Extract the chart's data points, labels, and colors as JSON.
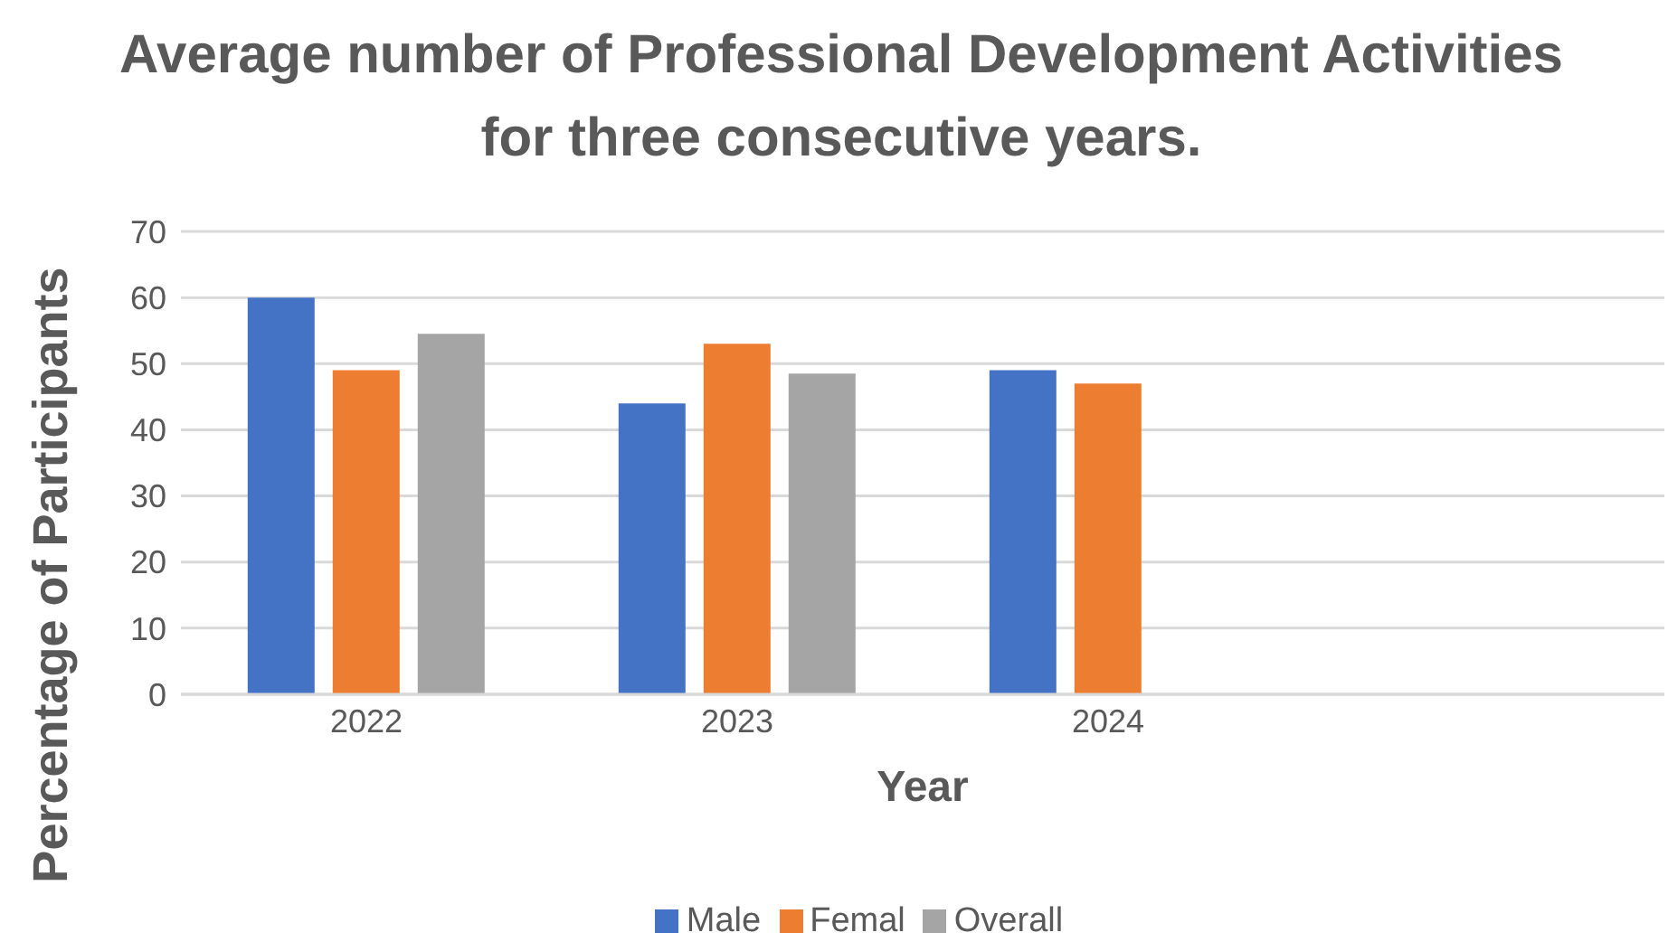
{
  "chart_data": {
    "type": "bar",
    "title": "Average number of Professional Development Activities for three consecutive years.",
    "xlabel": "Year",
    "ylabel": "Percentage of Participants",
    "categories": [
      "2022",
      "2023",
      "2024",
      null
    ],
    "series": [
      {
        "name": "Male",
        "color": "#4472c4",
        "values": [
          60,
          44,
          49,
          null
        ]
      },
      {
        "name": "Femal",
        "color": "#ed7d31",
        "values": [
          49,
          53,
          47,
          null
        ]
      },
      {
        "name": "Overall",
        "color": "#a5a5a5",
        "values": [
          54.5,
          48.5,
          null,
          null
        ]
      }
    ],
    "ylim": [
      0,
      70
    ],
    "yticks": [
      0,
      10,
      20,
      30,
      40,
      50,
      60,
      70
    ],
    "grid": "y",
    "legend": "bottom"
  }
}
